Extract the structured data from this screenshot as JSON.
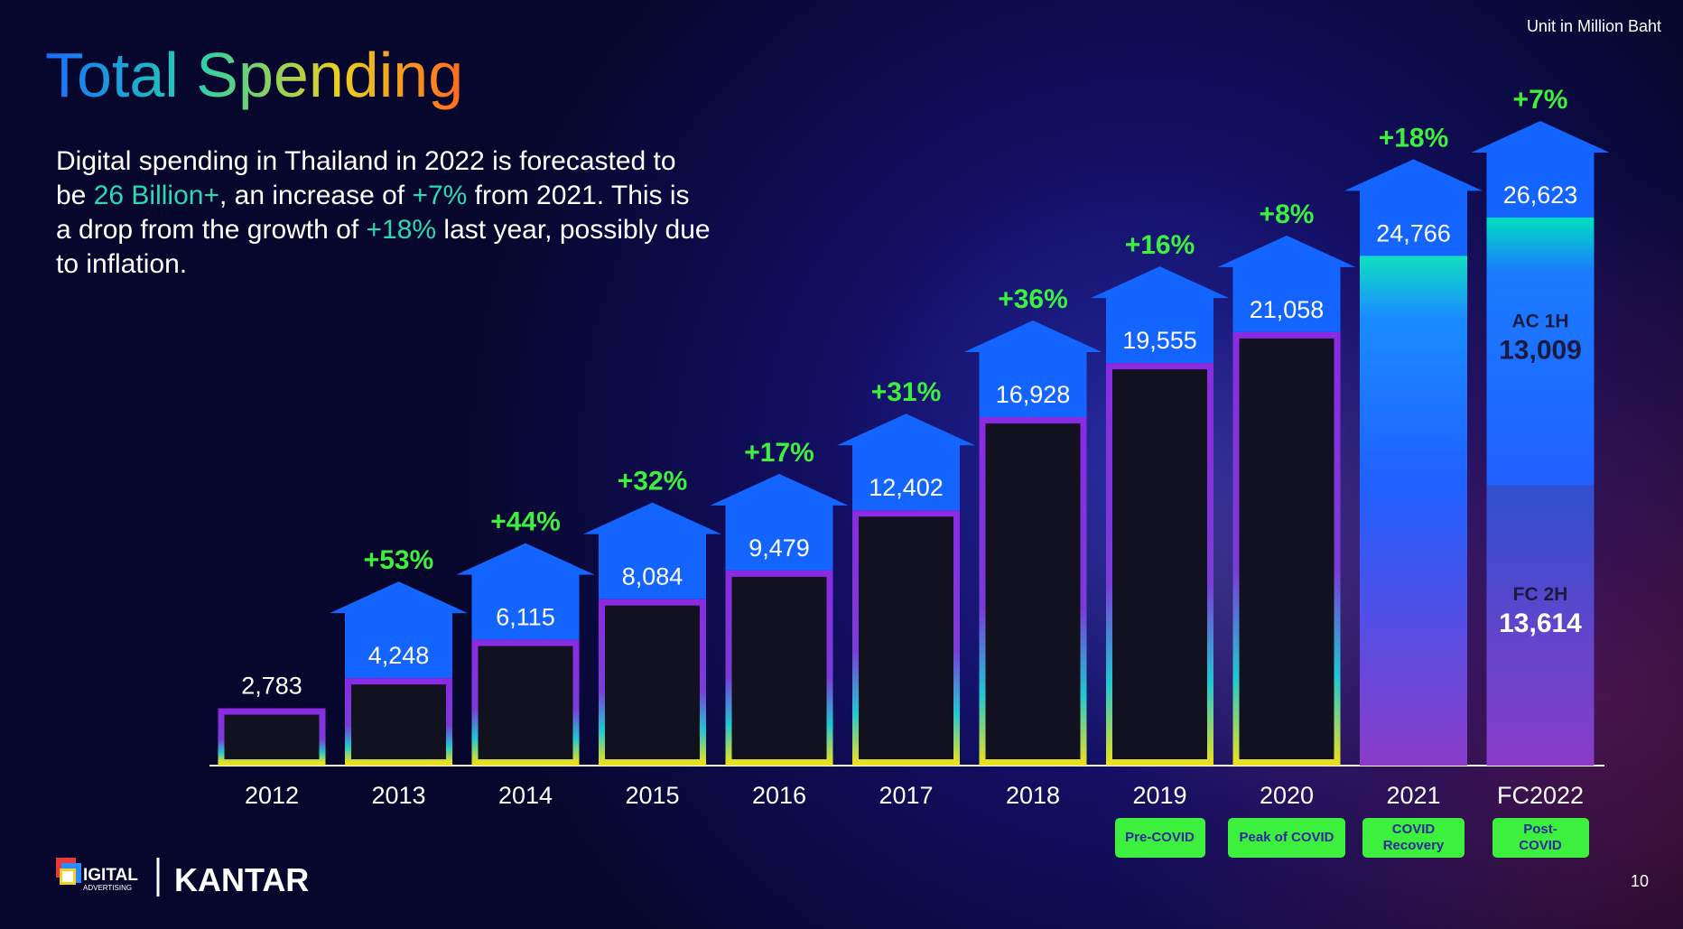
{
  "header": {
    "title": "Total Spending",
    "unit": "Unit in Million Baht"
  },
  "intro": [
    [
      "Digital spending in Thailand in 2022 is forecasted to"
    ],
    [
      "be ",
      {
        "text": "26 Billion+",
        "color": "#2ed8b0"
      },
      ", an increase of ",
      {
        "text": "+7%",
        "color": "#2ed8b0"
      },
      " from 2021. This is"
    ],
    [
      "a drop from the growth of ",
      {
        "text": "+18%",
        "color": "#2ed8b0"
      },
      " last year, possibly due"
    ],
    [
      "to inflation."
    ]
  ],
  "chart_data": {
    "type": "bar",
    "categories": [
      "2012",
      "2013",
      "2014",
      "2015",
      "2016",
      "2017",
      "2018",
      "2019",
      "2020",
      "2021",
      "FC2022"
    ],
    "values": [
      2783,
      4248,
      6115,
      8084,
      9479,
      12402,
      16928,
      19555,
      21058,
      24766,
      26623
    ],
    "value_labels": [
      "2,783",
      "4,248",
      "6,115",
      "8,084",
      "9,479",
      "12,402",
      "16,928",
      "19,555",
      "21,058",
      "24,766",
      "26,623"
    ],
    "growth_labels": [
      null,
      "+53%",
      "+44%",
      "+32%",
      "+17%",
      "+31%",
      "+36%",
      "+16%",
      "+8%",
      "+18%",
      "+7%"
    ],
    "phase_labels": [
      null,
      null,
      null,
      null,
      null,
      null,
      null,
      "Pre-COVID",
      "Peak of COVID",
      "COVID Recovery",
      "Post-COVID"
    ],
    "stack_segments": [
      {
        "name": "FC 2H",
        "value": 13614,
        "value_label": "13,614"
      },
      {
        "name": "AC 1H",
        "value": 13009,
        "value_label": "13,009"
      }
    ]
  },
  "footer": {
    "logo_main": "IGITAL",
    "logo_sub": "ADVERTISING",
    "kantar": "KANTAR",
    "page": "10"
  }
}
